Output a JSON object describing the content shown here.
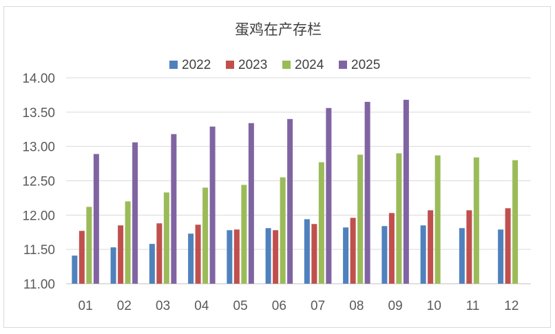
{
  "chart_data": {
    "type": "bar",
    "title": "蛋鸡在产存栏",
    "xlabel": "",
    "ylabel": "",
    "categories": [
      "01",
      "02",
      "03",
      "04",
      "05",
      "06",
      "07",
      "08",
      "09",
      "10",
      "11",
      "12"
    ],
    "ylim": [
      11.0,
      14.0
    ],
    "yticks": [
      "11.00",
      "11.50",
      "12.00",
      "12.50",
      "13.00",
      "13.50",
      "14.00"
    ],
    "grid": true,
    "legend_position": "top",
    "series": [
      {
        "name": "2022",
        "color": "#4F81BD",
        "values": [
          11.41,
          11.53,
          11.58,
          11.73,
          11.78,
          11.81,
          11.94,
          11.82,
          11.84,
          11.85,
          11.81,
          11.79
        ]
      },
      {
        "name": "2023",
        "color": "#C0504D",
        "values": [
          11.77,
          11.85,
          11.88,
          11.86,
          11.79,
          11.78,
          11.87,
          11.96,
          12.03,
          12.07,
          12.07,
          12.1
        ]
      },
      {
        "name": "2024",
        "color": "#9BBB59",
        "values": [
          12.12,
          12.2,
          12.33,
          12.4,
          12.44,
          12.55,
          12.77,
          12.88,
          12.9,
          12.87,
          12.84,
          12.8
        ]
      },
      {
        "name": "2025",
        "color": "#8064A2",
        "values": [
          12.89,
          13.06,
          13.18,
          13.29,
          13.34,
          13.4,
          13.56,
          13.65,
          13.68,
          null,
          null,
          null
        ]
      }
    ]
  }
}
